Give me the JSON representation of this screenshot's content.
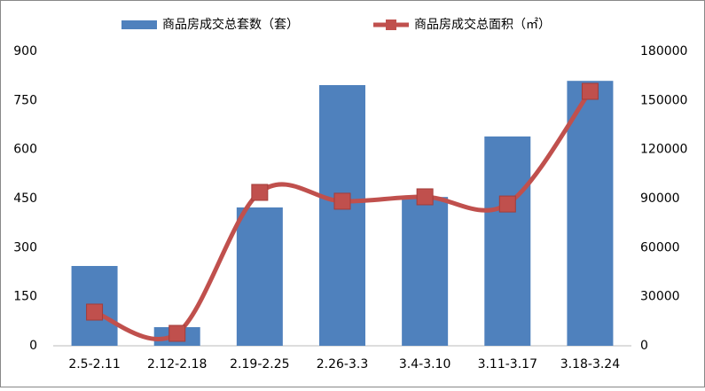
{
  "chart_data": {
    "type": "bar",
    "categories": [
      "2.5-2.11",
      "2.12-2.18",
      "2.19-2.25",
      "2.26-3.3",
      "3.4-3.10",
      "3.11-3.17",
      "3.18-3.24"
    ],
    "series": [
      {
        "name": "商品房成交总套数（套）",
        "color": "#4f81bd",
        "type": "bar",
        "values": [
          244,
          57,
          423,
          797,
          455,
          640,
          810
        ]
      },
      {
        "name": "商品房成交总面积（㎡）",
        "color": "#c0504d",
        "type": "line",
        "axis": "y2",
        "values": [
          20600,
          7600,
          93800,
          88400,
          91100,
          86700,
          155600
        ]
      }
    ],
    "ylim": [
      0,
      900
    ],
    "yticks": [
      0,
      150,
      300,
      450,
      600,
      750,
      900
    ],
    "y2lim": [
      0,
      180000
    ],
    "y2ticks": [
      0,
      30000,
      60000,
      90000,
      120000,
      150000,
      180000
    ],
    "legend": "top",
    "grid": false
  }
}
